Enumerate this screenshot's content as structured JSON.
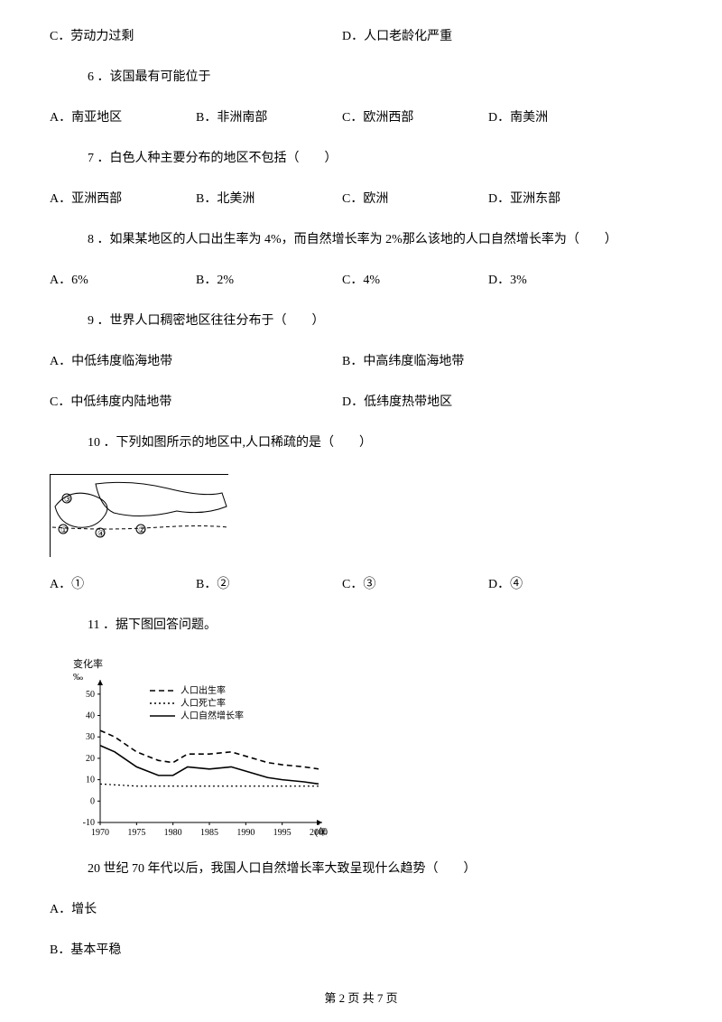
{
  "q5_options": {
    "c": "C．劳动力过剩",
    "d": "D．人口老龄化严重"
  },
  "q6": {
    "stem": "6 ．该国最有可能位于",
    "a": "A．南亚地区",
    "b": "B．非洲南部",
    "c": "C．欧洲西部",
    "d": "D．南美洲"
  },
  "q7": {
    "stem": "7 ．白色人种主要分布的地区不包括（　　）",
    "a": "A．亚洲西部",
    "b": "B．北美洲",
    "c": "C．欧洲",
    "d": "D．亚洲东部"
  },
  "q8": {
    "stem": "8 ．如果某地区的人口出生率为 4%，而自然增长率为 2%那么该地的人口自然增长率为（　　）",
    "a": "A．6%",
    "b": "B．2%",
    "c": "C．4%",
    "d": "D．3%"
  },
  "q9": {
    "stem": "9 ．世界人口稠密地区往往分布于（　　）",
    "a": "A．中低纬度临海地带",
    "b": "B．中高纬度临海地带",
    "c": "C．中低纬度内陆地带",
    "d": "D．低纬度热带地区"
  },
  "q10": {
    "stem": "10 ．下列如图所示的地区中,人口稀疏的是（　　）",
    "a": "A．①",
    "b": "B．②",
    "c": "C．③",
    "d": "D．④"
  },
  "q11": {
    "stem": "11 ．据下图回答问题。",
    "sub": "20 世纪 70 年代以后，我国人口自然增长率大致呈现什么趋势（　　）",
    "a": "A．增长",
    "b": "B．基本平稳"
  },
  "chart": {
    "ylabel": "变化率",
    "yunit": "‰",
    "legend": {
      "birth": "人口出生率",
      "death": "人口死亡率",
      "natural": "人口自然增长率"
    },
    "yticks": [
      -10,
      0,
      10,
      20,
      30,
      40,
      50
    ],
    "xticks": [
      1970,
      1975,
      1980,
      1985,
      1990,
      1995,
      2000
    ],
    "xlabel": "(年)",
    "colors": {
      "axis": "#000000",
      "birth": "#000000",
      "death": "#000000",
      "natural": "#000000",
      "bg": "#ffffff"
    },
    "xlim": [
      1970,
      2000
    ],
    "ylim": [
      -10,
      55
    ],
    "series": {
      "birth": {
        "x": [
          1970,
          1972,
          1975,
          1978,
          1980,
          1982,
          1985,
          1988,
          1990,
          1993,
          1995,
          1998,
          2000
        ],
        "y": [
          33,
          30,
          23,
          19,
          18,
          22,
          22,
          23,
          21,
          18,
          17,
          16,
          15
        ],
        "dash": "6,4",
        "width": 1.6
      },
      "death": {
        "x": [
          1970,
          1975,
          1980,
          1985,
          1990,
          1995,
          2000
        ],
        "y": [
          8,
          7,
          7,
          7,
          7,
          7,
          7
        ],
        "dash": "2,3",
        "width": 1.2
      },
      "natural": {
        "x": [
          1970,
          1972,
          1975,
          1978,
          1980,
          1982,
          1985,
          1988,
          1990,
          1993,
          1995,
          1998,
          2000
        ],
        "y": [
          26,
          23,
          16,
          12,
          12,
          16,
          15,
          16,
          14,
          11,
          10,
          9,
          8
        ],
        "dash": "none",
        "width": 1.6
      }
    }
  },
  "map": {
    "labels": [
      "①",
      "②",
      "③",
      "④"
    ]
  },
  "footer": "第 2 页 共 7 页"
}
